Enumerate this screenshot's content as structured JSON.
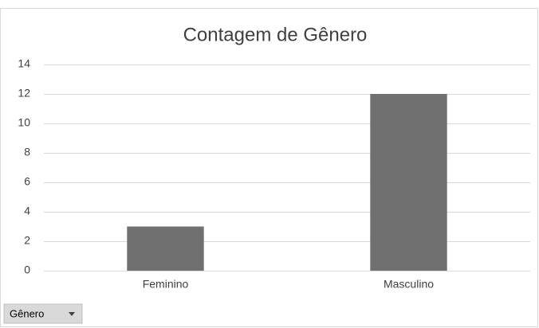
{
  "chart_data": {
    "type": "bar",
    "title": "Contagem de Gênero",
    "categories": [
      "Feminino",
      "Masculino"
    ],
    "values": [
      3,
      12
    ],
    "color": "#707070",
    "ylim": [
      0,
      14
    ],
    "yticks": [
      0,
      2,
      4,
      6,
      8,
      10,
      12,
      14
    ],
    "grid": true
  },
  "field_button": {
    "label": "Gênero"
  }
}
